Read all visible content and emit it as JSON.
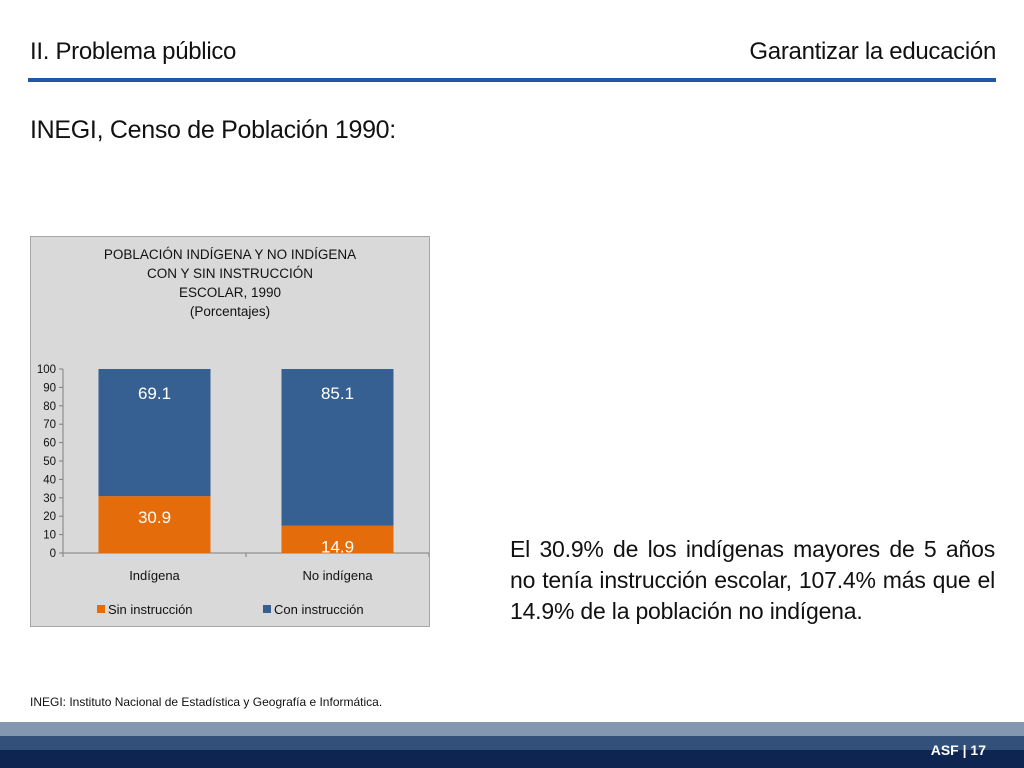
{
  "header": {
    "section": "II. Problema público",
    "topic": "Garantizar la educación",
    "accent_color": "#1f57a4"
  },
  "subtitle": "INEGI, Censo de Población 1990:",
  "chart_data": {
    "type": "bar",
    "stacked": true,
    "title_lines": [
      "POBLACIÓN INDÍGENA Y NO INDÍGENA",
      "CON Y SIN INSTRUCCIÓN",
      "ESCOLAR, 1990",
      "(Porcentajes)"
    ],
    "categories": [
      "Indígena",
      "No indígena"
    ],
    "series": [
      {
        "name": "Sin instrucción",
        "values": [
          30.9,
          14.9
        ],
        "labels": [
          "30.9",
          "14.9"
        ],
        "color": "#e46c0a"
      },
      {
        "name": "Con instrucción",
        "values": [
          69.1,
          85.1
        ],
        "labels": [
          "69.1",
          "85.1"
        ],
        "color": "#376092"
      }
    ],
    "ylim": [
      0,
      100
    ],
    "yticks": [
      0,
      10,
      20,
      30,
      40,
      50,
      60,
      70,
      80,
      90,
      100
    ],
    "grid": false,
    "legend": "bottom",
    "xlabel": "",
    "ylabel": ""
  },
  "body_text": "El 30.9% de los indígenas mayores de 5 años no tenía instrucción escolar, 107.4% más que el 14.9% de la población no indígena.",
  "footnote": "INEGI: Instituto Nacional de Estadística y Geografía e Informática.",
  "footer": {
    "label": "ASF | 17"
  }
}
